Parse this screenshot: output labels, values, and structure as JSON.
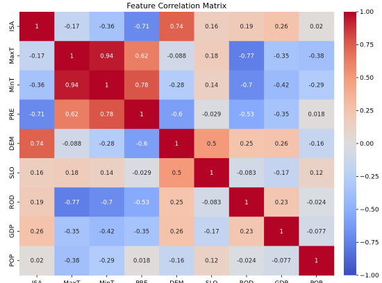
{
  "chart_data": {
    "type": "heatmap",
    "title": "Feature Correlation Matrix",
    "x_labels": [
      "ISA",
      "MaxT",
      "MinT",
      "PRE",
      "DEM",
      "SLO",
      "ROD",
      "GDP",
      "POP"
    ],
    "y_labels": [
      "ISA",
      "MaxT",
      "MinT",
      "PRE",
      "DEM",
      "SLO",
      "ROD",
      "GDP",
      "POP"
    ],
    "values": [
      [
        1,
        -0.17,
        -0.36,
        -0.71,
        0.74,
        0.16,
        0.19,
        0.26,
        0.02
      ],
      [
        -0.17,
        1,
        0.94,
        0.62,
        -0.088,
        0.18,
        -0.77,
        -0.35,
        -0.38
      ],
      [
        -0.36,
        0.94,
        1,
        0.78,
        -0.28,
        0.14,
        -0.7,
        -0.42,
        -0.29
      ],
      [
        -0.71,
        0.62,
        0.78,
        1,
        -0.6,
        -0.029,
        -0.53,
        -0.35,
        0.018
      ],
      [
        0.74,
        -0.088,
        -0.28,
        -0.6,
        1,
        0.5,
        0.25,
        0.26,
        -0.16
      ],
      [
        0.16,
        0.18,
        0.14,
        -0.029,
        0.5,
        1,
        -0.083,
        -0.17,
        0.12
      ],
      [
        0.19,
        -0.77,
        -0.7,
        -0.53,
        0.25,
        -0.083,
        1,
        0.23,
        -0.024
      ],
      [
        0.26,
        -0.35,
        -0.42,
        -0.35,
        0.26,
        -0.17,
        0.23,
        1,
        -0.077
      ],
      [
        0.02,
        -0.38,
        -0.29,
        0.018,
        -0.16,
        0.12,
        -0.024,
        -0.077,
        1
      ]
    ],
    "value_labels": [
      [
        "1",
        "-0.17",
        "-0.36",
        "-0.71",
        "0.74",
        "0.16",
        "0.19",
        "0.26",
        "0.02"
      ],
      [
        "-0.17",
        "1",
        "0.94",
        "0.62",
        "-0.088",
        "0.18",
        "-0.77",
        "-0.35",
        "-0.38"
      ],
      [
        "-0.36",
        "0.94",
        "1",
        "0.78",
        "-0.28",
        "0.14",
        "-0.7",
        "-0.42",
        "-0.29"
      ],
      [
        "-0.71",
        "0.62",
        "0.78",
        "1",
        "-0.6",
        "-0.029",
        "-0.53",
        "-0.35",
        "0.018"
      ],
      [
        "0.74",
        "-0.088",
        "-0.28",
        "-0.6",
        "1",
        "0.5",
        "0.25",
        "0.26",
        "-0.16"
      ],
      [
        "0.16",
        "0.18",
        "0.14",
        "-0.029",
        "0.5",
        "1",
        "-0.083",
        "-0.17",
        "0.12"
      ],
      [
        "0.19",
        "-0.77",
        "-0.7",
        "-0.53",
        "0.25",
        "-0.083",
        "1",
        "0.23",
        "-0.024"
      ],
      [
        "0.26",
        "-0.35",
        "-0.42",
        "-0.35",
        "0.26",
        "-0.17",
        "0.23",
        "1",
        "-0.077"
      ],
      [
        "0.02",
        "-0.38",
        "-0.29",
        "0.018",
        "-0.16",
        "0.12",
        "-0.024",
        "-0.077",
        "1"
      ]
    ],
    "colorbar": {
      "range": [
        -1,
        1
      ],
      "ticks": [
        1.0,
        0.75,
        0.5,
        0.25,
        0.0,
        -0.25,
        -0.5,
        -0.75,
        -1.0
      ],
      "tick_labels": [
        "1.00",
        "0.75",
        "0.50",
        "0.25",
        "0.00",
        "−0.25",
        "−0.50",
        "−0.75",
        "−1.00"
      ],
      "colormap": "coolwarm",
      "low_color": "#3b4cc0",
      "mid_color": "#dddddd",
      "high_color": "#b40426"
    },
    "grid": false,
    "legend": "colorbar-right"
  }
}
